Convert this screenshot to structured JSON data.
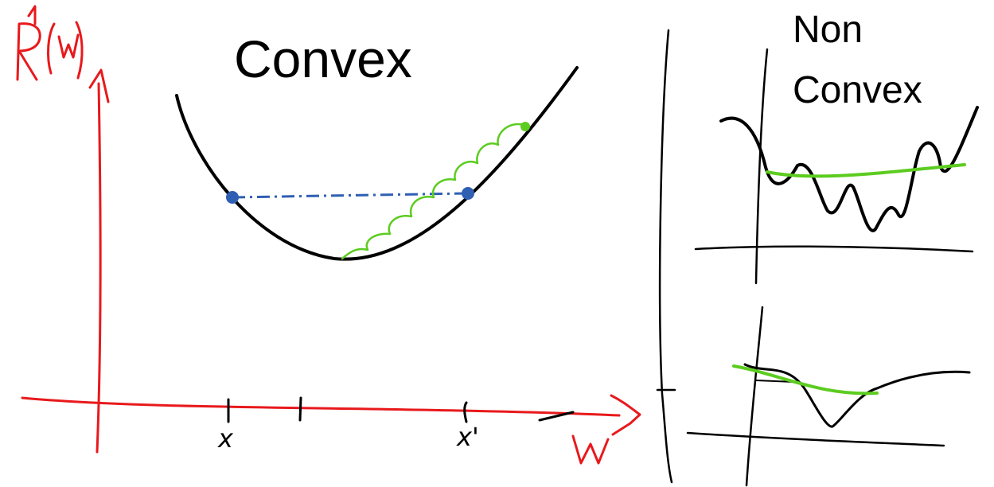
{
  "left_panel": {
    "title": "Convex",
    "y_axis_label": "R(w)",
    "x_axis_label": "w",
    "tick_labels": [
      "x",
      "x'"
    ]
  },
  "right_panel": {
    "title_line1": "Non",
    "title_line2": "Convex"
  },
  "colors": {
    "axis": "#e8191c",
    "curve": "#000000",
    "chord": "#2f5fb3",
    "path": "#5ccc1f"
  }
}
